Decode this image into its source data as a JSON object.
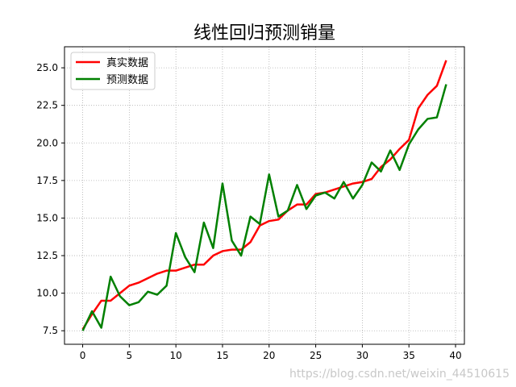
{
  "chart_data": {
    "type": "line",
    "title": "线性回归预测销量",
    "xlabel": "",
    "ylabel": "",
    "xlim": [
      -1.95,
      40.95
    ],
    "ylim": [
      6.6,
      26.4
    ],
    "xticks": [
      0,
      5,
      10,
      15,
      20,
      25,
      30,
      35,
      40
    ],
    "yticks": [
      7.5,
      10.0,
      12.5,
      15.0,
      17.5,
      20.0,
      22.5,
      25.0
    ],
    "ytick_labels": [
      "7.5",
      "10.0",
      "12.5",
      "15.0",
      "17.5",
      "20.0",
      "22.5",
      "25.0"
    ],
    "grid": true,
    "legend_position": "upper-left",
    "x": [
      0,
      1,
      2,
      3,
      4,
      5,
      6,
      7,
      8,
      9,
      10,
      11,
      12,
      13,
      14,
      15,
      16,
      17,
      18,
      19,
      20,
      21,
      22,
      23,
      24,
      25,
      26,
      27,
      28,
      29,
      30,
      31,
      32,
      33,
      34,
      35,
      36,
      37,
      38,
      39
    ],
    "series": [
      {
        "name": "真实数据",
        "color": "#ff0000",
        "values": [
          7.6,
          8.6,
          9.5,
          9.5,
          10.0,
          10.5,
          10.7,
          11.0,
          11.3,
          11.5,
          11.5,
          11.7,
          11.9,
          11.9,
          12.5,
          12.8,
          12.9,
          12.9,
          13.4,
          14.5,
          14.8,
          14.9,
          15.5,
          15.9,
          15.9,
          16.6,
          16.7,
          16.9,
          17.1,
          17.3,
          17.4,
          17.6,
          18.4,
          18.9,
          19.6,
          20.2,
          22.3,
          23.2,
          23.8,
          25.5
        ]
      },
      {
        "name": "预测数据",
        "color": "#008000",
        "values": [
          7.5,
          8.8,
          7.7,
          11.1,
          9.8,
          9.2,
          9.4,
          10.1,
          9.9,
          10.5,
          14.0,
          12.4,
          11.4,
          14.7,
          13.0,
          17.3,
          13.5,
          12.5,
          15.1,
          14.6,
          17.9,
          15.1,
          15.5,
          17.2,
          15.6,
          16.5,
          16.7,
          16.3,
          17.4,
          16.3,
          17.2,
          18.7,
          18.1,
          19.5,
          18.2,
          19.9,
          20.9,
          21.6,
          21.7,
          23.9
        ]
      }
    ]
  },
  "watermark": "https://blog.csdn.net/weixin_44510615"
}
